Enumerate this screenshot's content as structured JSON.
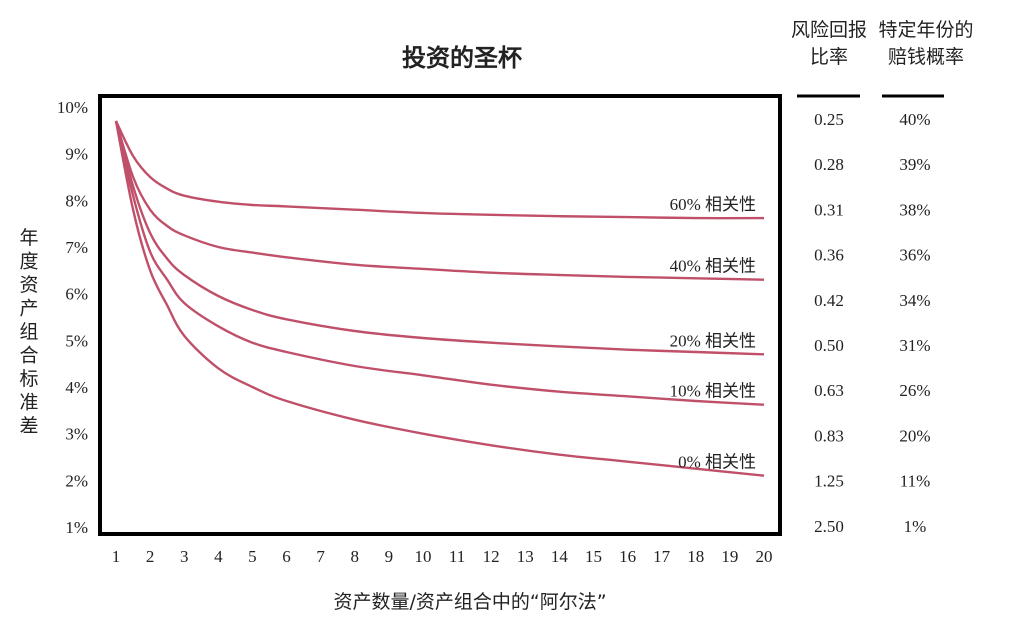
{
  "chart_data": {
    "type": "line",
    "title": "投资的圣杯",
    "xlabel": "资产数量/资产组合中的“阿尔法”",
    "ylabel": "年度资产组合标准差",
    "xlim": [
      1,
      20
    ],
    "ylim": [
      1,
      10
    ],
    "x_ticks": [
      "1",
      "2",
      "3",
      "4",
      "5",
      "6",
      "7",
      "8",
      "9",
      "10",
      "11",
      "12",
      "13",
      "14",
      "15",
      "16",
      "17",
      "18",
      "19",
      "20"
    ],
    "y_ticks": [
      "1%",
      "2%",
      "3%",
      "4%",
      "5%",
      "6%",
      "7%",
      "8%",
      "9%",
      "10%"
    ],
    "series_color": "#c0506a",
    "series": [
      {
        "name": "60% 相关性",
        "x": [
          1,
          1.5,
          2,
          2.5,
          3,
          4,
          5,
          6,
          8,
          10,
          12,
          14,
          16,
          18,
          20
        ],
        "values": [
          9.7,
          8.95,
          8.5,
          8.25,
          8.1,
          7.97,
          7.9,
          7.87,
          7.8,
          7.73,
          7.69,
          7.66,
          7.64,
          7.62,
          7.62
        ]
      },
      {
        "name": "40% 相关性",
        "x": [
          1,
          1.5,
          2,
          2.5,
          3,
          4,
          5,
          6,
          8,
          10,
          12,
          14,
          16,
          18,
          20
        ],
        "values": [
          9.7,
          8.5,
          7.8,
          7.45,
          7.25,
          7.0,
          6.88,
          6.78,
          6.62,
          6.53,
          6.45,
          6.4,
          6.36,
          6.33,
          6.3
        ]
      },
      {
        "name": "20% 相关性",
        "x": [
          1,
          1.5,
          2,
          2.5,
          3,
          4,
          5,
          6,
          8,
          10,
          12,
          14,
          16,
          18,
          20
        ],
        "values": [
          9.7,
          8.3,
          7.3,
          6.75,
          6.4,
          5.95,
          5.65,
          5.45,
          5.2,
          5.05,
          4.95,
          4.87,
          4.8,
          4.75,
          4.7
        ]
      },
      {
        "name": "10% 相关性",
        "x": [
          1,
          1.5,
          2,
          2.5,
          3,
          4,
          5,
          6,
          8,
          10,
          12,
          14,
          16,
          18,
          20
        ],
        "values": [
          9.7,
          8.1,
          6.9,
          6.3,
          5.8,
          5.3,
          4.95,
          4.75,
          4.45,
          4.25,
          4.05,
          3.9,
          3.8,
          3.7,
          3.62
        ]
      },
      {
        "name": "0% 相关性",
        "x": [
          1,
          1.5,
          2,
          2.5,
          3,
          4,
          5,
          6,
          8,
          10,
          12,
          14,
          16,
          18,
          20
        ],
        "values": [
          9.7,
          7.8,
          6.5,
          5.75,
          5.1,
          4.4,
          4.0,
          3.7,
          3.3,
          3.0,
          2.75,
          2.55,
          2.4,
          2.25,
          2.1
        ]
      }
    ]
  },
  "table": {
    "col1_header": [
      "风险回报",
      "比率"
    ],
    "col2_header": [
      "特定年份的",
      "赔钱概率"
    ],
    "rows": [
      [
        "0.25",
        "40%"
      ],
      [
        "0.28",
        "39%"
      ],
      [
        "0.31",
        "38%"
      ],
      [
        "0.36",
        "36%"
      ],
      [
        "0.42",
        "34%"
      ],
      [
        "0.50",
        "31%"
      ],
      [
        "0.63",
        "26%"
      ],
      [
        "0.83",
        "20%"
      ],
      [
        "1.25",
        "11%"
      ],
      [
        "2.50",
        "1%"
      ]
    ]
  }
}
